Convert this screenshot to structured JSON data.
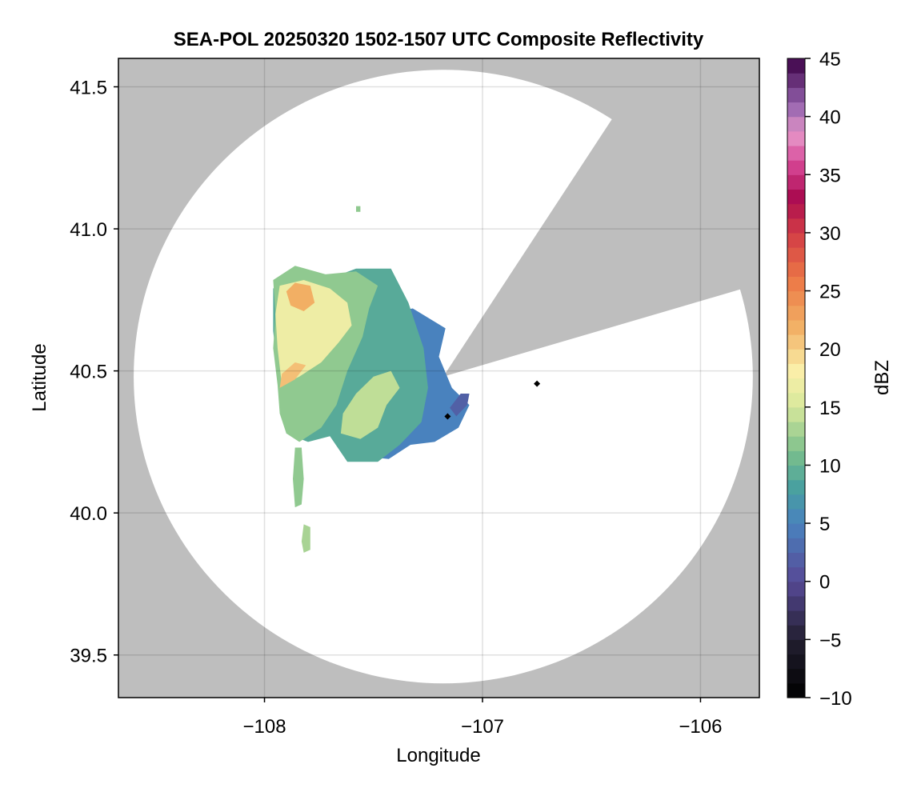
{
  "chart_data": {
    "type": "heatmap",
    "title": "SEA-POL 20250320 1502-1507 UTC Composite Reflectivity",
    "xlabel": "Longitude",
    "ylabel": "Latitude",
    "xlim": [
      -108.67,
      -105.73
    ],
    "ylim": [
      39.35,
      41.6
    ],
    "x_ticks": [
      -108,
      -107,
      -106
    ],
    "x_tick_labels": [
      "−108",
      "−107",
      "−106"
    ],
    "y_ticks": [
      39.5,
      40.0,
      40.5,
      41.0,
      41.5
    ],
    "y_tick_labels": [
      "39.5",
      "40.0",
      "40.5",
      "41.0",
      "41.5"
    ],
    "grid": true,
    "colorbar": {
      "label": "dBZ",
      "min": -10,
      "max": 45,
      "ticks": [
        -10,
        -5,
        0,
        5,
        10,
        15,
        20,
        25,
        30,
        35,
        40,
        45
      ],
      "tick_labels": [
        "−10",
        "−5",
        "0",
        "5",
        "10",
        "15",
        "20",
        "25",
        "30",
        "35",
        "40",
        "45"
      ],
      "colormap": "spectral-like (black → purple → blue → teal → green → yellow → orange → red → pink → purple)"
    },
    "colors": {
      "no_coverage": "#bebebe",
      "radar_coverage": "#ffffff"
    },
    "radar_coverage": {
      "center": [
        -107.18,
        40.48
      ],
      "range_lat_deg": 1.08,
      "range_lon_deg": 1.42,
      "blocked_sector_deg": [
        16.5,
        57.0
      ]
    },
    "echo_regions": [
      {
        "name": "main-echo-low",
        "dbz": 5,
        "points": [
          [
            -107.68,
            40.27
          ],
          [
            -107.55,
            40.2
          ],
          [
            -107.43,
            40.19
          ],
          [
            -107.33,
            40.24
          ],
          [
            -107.22,
            40.25
          ],
          [
            -107.11,
            40.3
          ],
          [
            -107.06,
            40.38
          ],
          [
            -107.14,
            40.44
          ],
          [
            -107.2,
            40.55
          ],
          [
            -107.17,
            40.65
          ],
          [
            -107.32,
            40.72
          ],
          [
            -107.45,
            40.7
          ],
          [
            -107.62,
            40.6
          ],
          [
            -107.7,
            40.45
          ]
        ]
      },
      {
        "name": "main-echo-moderate",
        "dbz": 9,
        "points": [
          [
            -107.9,
            40.28
          ],
          [
            -107.8,
            40.25
          ],
          [
            -107.7,
            40.27
          ],
          [
            -107.62,
            40.18
          ],
          [
            -107.48,
            40.18
          ],
          [
            -107.38,
            40.24
          ],
          [
            -107.28,
            40.32
          ],
          [
            -107.25,
            40.44
          ],
          [
            -107.27,
            40.58
          ],
          [
            -107.34,
            40.74
          ],
          [
            -107.42,
            40.86
          ],
          [
            -107.58,
            40.86
          ],
          [
            -107.72,
            40.82
          ],
          [
            -107.86,
            40.85
          ],
          [
            -107.96,
            40.79
          ],
          [
            -107.96,
            40.64
          ],
          [
            -107.94,
            40.5
          ],
          [
            -107.92,
            40.38
          ]
        ]
      },
      {
        "name": "main-echo-light-west",
        "dbz": 12,
        "points": [
          [
            -107.9,
            40.28
          ],
          [
            -107.84,
            40.25
          ],
          [
            -107.74,
            40.3
          ],
          [
            -107.67,
            40.38
          ],
          [
            -107.62,
            40.5
          ],
          [
            -107.55,
            40.62
          ],
          [
            -107.52,
            40.72
          ],
          [
            -107.48,
            40.8
          ],
          [
            -107.58,
            40.85
          ],
          [
            -107.72,
            40.84
          ],
          [
            -107.86,
            40.87
          ],
          [
            -107.96,
            40.82
          ],
          [
            -107.95,
            40.7
          ],
          [
            -107.96,
            40.58
          ],
          [
            -107.94,
            40.45
          ],
          [
            -107.93,
            40.35
          ]
        ]
      },
      {
        "name": "main-echo-light-east",
        "dbz": 14,
        "points": [
          [
            -107.65,
            40.28
          ],
          [
            -107.56,
            40.26
          ],
          [
            -107.48,
            40.3
          ],
          [
            -107.44,
            40.38
          ],
          [
            -107.38,
            40.44
          ],
          [
            -107.42,
            40.5
          ],
          [
            -107.5,
            40.48
          ],
          [
            -107.58,
            40.42
          ],
          [
            -107.64,
            40.35
          ]
        ]
      },
      {
        "name": "main-echo-core-yellow",
        "dbz": 17,
        "points": [
          [
            -107.92,
            40.45
          ],
          [
            -107.84,
            40.48
          ],
          [
            -107.74,
            40.53
          ],
          [
            -107.66,
            40.6
          ],
          [
            -107.6,
            40.66
          ],
          [
            -107.62,
            40.74
          ],
          [
            -107.7,
            40.79
          ],
          [
            -107.82,
            40.82
          ],
          [
            -107.93,
            40.8
          ],
          [
            -107.95,
            40.7
          ],
          [
            -107.94,
            40.58
          ]
        ]
      },
      {
        "name": "core-north",
        "dbz": 22,
        "points": [
          [
            -107.88,
            40.73
          ],
          [
            -107.82,
            40.71
          ],
          [
            -107.77,
            40.74
          ],
          [
            -107.79,
            40.8
          ],
          [
            -107.86,
            40.81
          ],
          [
            -107.9,
            40.78
          ]
        ]
      },
      {
        "name": "core-south",
        "dbz": 21,
        "points": [
          [
            -107.93,
            40.44
          ],
          [
            -107.86,
            40.47
          ],
          [
            -107.81,
            40.52
          ],
          [
            -107.86,
            40.53
          ],
          [
            -107.92,
            40.49
          ]
        ]
      },
      {
        "name": "strip-south-1",
        "dbz": 12,
        "points": [
          [
            -107.86,
            40.23
          ],
          [
            -107.83,
            40.23
          ],
          [
            -107.82,
            40.12
          ],
          [
            -107.83,
            40.03
          ],
          [
            -107.86,
            40.02
          ],
          [
            -107.87,
            40.12
          ]
        ]
      },
      {
        "name": "strip-south-2",
        "dbz": 13,
        "points": [
          [
            -107.82,
            39.96
          ],
          [
            -107.79,
            39.95
          ],
          [
            -107.79,
            39.87
          ],
          [
            -107.82,
            39.86
          ],
          [
            -107.83,
            39.9
          ]
        ]
      },
      {
        "name": "cell-north",
        "dbz": 12,
        "points": [
          [
            -107.58,
            41.08
          ],
          [
            -107.56,
            41.08
          ],
          [
            -107.56,
            41.06
          ],
          [
            -107.58,
            41.06
          ]
        ]
      },
      {
        "name": "east-fringe",
        "dbz": 2,
        "points": [
          [
            -107.12,
            40.34
          ],
          [
            -107.07,
            40.38
          ],
          [
            -107.06,
            40.42
          ],
          [
            -107.1,
            40.42
          ],
          [
            -107.15,
            40.37
          ]
        ]
      }
    ],
    "markers": [
      {
        "lon": -106.75,
        "lat": 40.455
      },
      {
        "lon": -107.16,
        "lat": 40.34
      }
    ]
  }
}
